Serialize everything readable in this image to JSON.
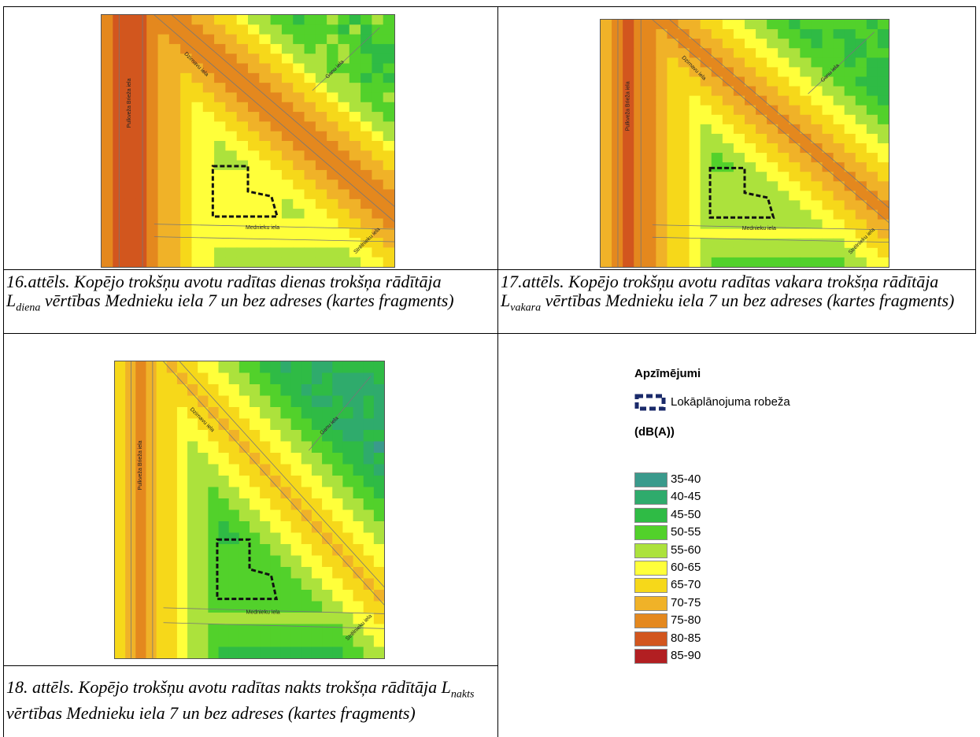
{
  "figures": [
    {
      "number": "16.attēls.",
      "text_before": "Kopējo trokšņu avotu radītas dienas trokšņa rādītāja",
      "symbol": "L",
      "subscript": "diena",
      "text_after": "vērtības Mednieku iela 7 un bez adreses (kartes fragments)",
      "streets": [
        "Pulkveža Brieža iela",
        "Dzirnavu iela",
        "Ganu iela",
        "Mednieku iela",
        "Strēlnieku iela"
      ]
    },
    {
      "number": "17.attēls.",
      "text_before": "Kopējo trokšņu avotu radītas vakara trokšņa rādītāja",
      "symbol": "L",
      "subscript": "vakara",
      "text_after": "vērtības Mednieku iela 7 un bez adreses (kartes fragments)",
      "streets": [
        "Pulkveža Brieža iela",
        "Dzirnavu iela",
        "Ganu iela",
        "Mednieku iela",
        "Strēlnieku iela"
      ]
    },
    {
      "number": "18. attēls.",
      "text_before": "Kopējo trokšņu avotu radītas nakts trokšņa rādītāja",
      "symbol": "L",
      "subscript": "nakts",
      "text_after": "vērtības Mednieku iela 7 un bez adreses (kartes fragments)",
      "streets": [
        "Pulkveža Brieža iela",
        "Dzirnavu iela",
        "Ganu iela",
        "Mednieku iela",
        "Strēlnieku iela"
      ]
    }
  ],
  "legend": {
    "title": "Apzīmējumi",
    "boundary_label": "Lokāplānojuma robeža",
    "unit": "(dB(A))",
    "classes": [
      {
        "label": "35-40",
        "color": "#3a9a8c"
      },
      {
        "label": "40-45",
        "color": "#2fab6c"
      },
      {
        "label": "45-50",
        "color": "#2fbb45"
      },
      {
        "label": "50-55",
        "color": "#52d12b"
      },
      {
        "label": "55-60",
        "color": "#ace23c"
      },
      {
        "label": "60-65",
        "color": "#ffff3a"
      },
      {
        "label": "65-70",
        "color": "#f6d81a"
      },
      {
        "label": "70-75",
        "color": "#f0b228"
      },
      {
        "label": "75-80",
        "color": "#e4881e"
      },
      {
        "label": "80-85",
        "color": "#d2561e"
      },
      {
        "label": "85-90",
        "color": "#b21f22"
      }
    ]
  }
}
